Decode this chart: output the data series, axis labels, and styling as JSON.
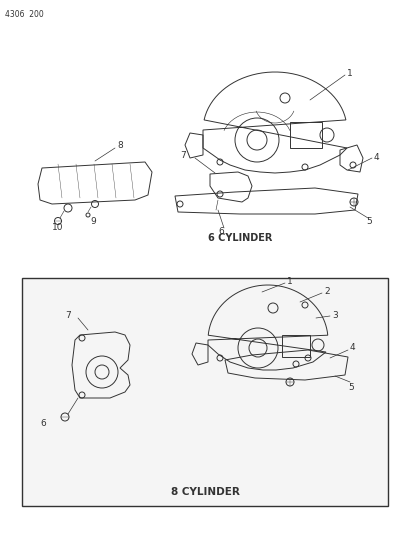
{
  "page_id": "4306  200",
  "title_6cyl": "6 CYLINDER",
  "title_8cyl": "8 CYLINDER",
  "bg_color": "#ffffff",
  "line_color": "#333333",
  "text_color": "#333333",
  "fig_width": 4.08,
  "fig_height": 5.33,
  "dpi": 100
}
